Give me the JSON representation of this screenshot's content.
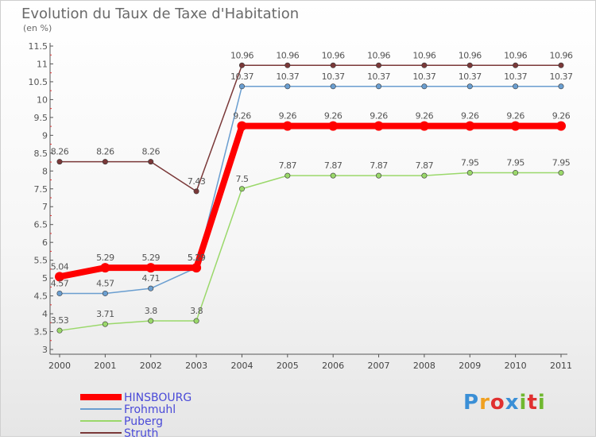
{
  "chart_title": "Evolution du Taux de Taxe d'Habitation",
  "chart_subtitle": "(en %)",
  "logo": {
    "text": "Proxiti",
    "colors": [
      "#3a8fd6",
      "#f0a020",
      "#e03030",
      "#3a8fd6",
      "#70b830",
      "#e03030",
      "#70b830"
    ]
  },
  "chart_data": {
    "type": "line",
    "title": "Evolution du Taux de Taxe d'Habitation",
    "ylabel": "(en %)",
    "xlabel": "",
    "x": [
      "2000",
      "2001",
      "2002",
      "2003",
      "2004",
      "2005",
      "2006",
      "2007",
      "2008",
      "2009",
      "2010",
      "2011"
    ],
    "ylim": [
      3,
      11.5
    ],
    "yticks": [
      "3",
      "3.5",
      "4",
      "4.5",
      "5",
      "5.5",
      "6",
      "6.5",
      "7",
      "7.5",
      "8",
      "8.5",
      "9",
      "9.5",
      "10",
      "10.5",
      "11",
      "11.5"
    ],
    "grid": false,
    "legend_position": "bottom-left",
    "series": [
      {
        "name": "HINSBOURG",
        "color": "#ff0000",
        "values": [
          5.04,
          5.29,
          5.29,
          5.29,
          9.26,
          9.26,
          9.26,
          9.26,
          9.26,
          9.26,
          9.26,
          9.26
        ],
        "labels": [
          "5.04",
          "5.29",
          "5.29",
          "5.29",
          "9.26",
          "9.26",
          "9.26",
          "9.26",
          "9.26",
          "9.26",
          "9.26",
          "9.26"
        ]
      },
      {
        "name": "Frohmuhl",
        "color": "#6a9ed0",
        "values": [
          4.57,
          4.57,
          4.71,
          5.29,
          10.37,
          10.37,
          10.37,
          10.37,
          10.37,
          10.37,
          10.37,
          10.37
        ],
        "labels": [
          "4.57",
          "4.57",
          "4.71",
          "5.29",
          "10.37",
          "10.37",
          "10.37",
          "10.37",
          "10.37",
          "10.37",
          "10.37",
          "10.37"
        ]
      },
      {
        "name": "Puberg",
        "color": "#9ad86a",
        "values": [
          3.53,
          3.71,
          3.8,
          3.8,
          7.5,
          7.87,
          7.87,
          7.87,
          7.87,
          7.95,
          7.95,
          7.95
        ],
        "labels": [
          "3.53",
          "3.71",
          "3.8",
          "3.8",
          "7.5",
          "7.87",
          "7.87",
          "7.87",
          "7.87",
          "7.95",
          "7.95",
          "7.95"
        ]
      },
      {
        "name": "Struth",
        "color": "#7a3838",
        "values": [
          8.26,
          8.26,
          8.26,
          7.43,
          10.96,
          10.96,
          10.96,
          10.96,
          10.96,
          10.96,
          10.96,
          10.96
        ],
        "labels": [
          "8.26",
          "8.26",
          "8.26",
          "7.43",
          "10.96",
          "10.96",
          "10.96",
          "10.96",
          "10.96",
          "10.96",
          "10.96",
          "10.96"
        ]
      }
    ]
  }
}
